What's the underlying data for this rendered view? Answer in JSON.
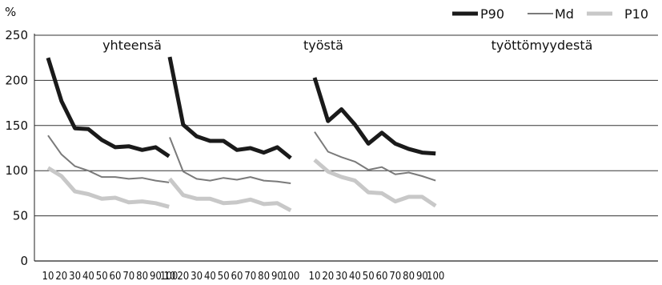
{
  "chart_data": {
    "type": "line",
    "ylabel": "%",
    "ylim": [
      0,
      250
    ],
    "yticks": [
      "0",
      "50",
      "100",
      "150",
      "200",
      "250"
    ],
    "grid": true,
    "legend_position": "top-right",
    "categories": [
      "10",
      "20",
      "30",
      "40",
      "50",
      "60",
      "70",
      "80",
      "90",
      "100"
    ],
    "series_styles": [
      {
        "name": "P90",
        "color": "#1a1a1a",
        "width": 5
      },
      {
        "name": "Md",
        "color": "#7a7a7a",
        "width": 2
      },
      {
        "name": "P10",
        "color": "#c8c8c8",
        "width": 5
      }
    ],
    "panels": [
      {
        "title": "yhteensä",
        "series": [
          {
            "name": "P90",
            "values": [
              225,
              177,
              147,
              146,
              134,
              126,
              127,
              123,
              126,
              116
            ]
          },
          {
            "name": "Md",
            "values": [
              139,
              118,
              105,
              100,
              93,
              93,
              91,
              92,
              89,
              87
            ]
          },
          {
            "name": "P10",
            "values": [
              103,
              94,
              77,
              74,
              69,
              70,
              65,
              66,
              64,
              60
            ]
          }
        ]
      },
      {
        "title": "työstä",
        "series": [
          {
            "name": "P90",
            "values": [
              226,
              151,
              138,
              133,
              133,
              123,
              125,
              120,
              126,
              114
            ]
          },
          {
            "name": "Md",
            "values": [
              137,
              99,
              91,
              89,
              92,
              90,
              93,
              89,
              88,
              86
            ]
          },
          {
            "name": "P10",
            "values": [
              91,
              73,
              69,
              69,
              64,
              65,
              68,
              63,
              64,
              56
            ]
          }
        ]
      },
      {
        "title": "työttömyydestä",
        "series": [
          {
            "name": "P90",
            "values": [
              203,
              155,
              168,
              151,
              130,
              142,
              130,
              124,
              120,
              119
            ]
          },
          {
            "name": "Md",
            "values": [
              143,
              121,
              115,
              110,
              101,
              104,
              96,
              98,
              94,
              89
            ]
          },
          {
            "name": "P10",
            "values": [
              112,
              99,
              93,
              89,
              76,
              75,
              66,
              71,
              71,
              61
            ]
          }
        ]
      }
    ]
  }
}
